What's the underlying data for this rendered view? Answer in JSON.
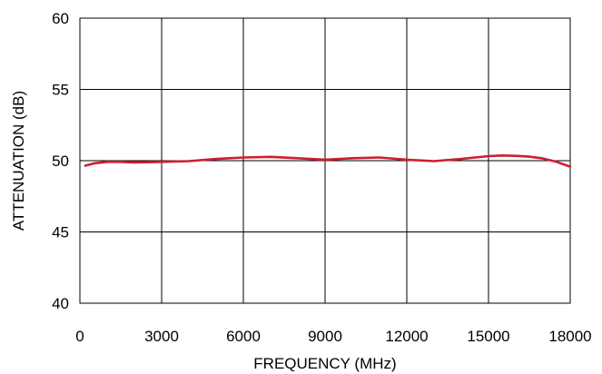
{
  "chart_data": {
    "type": "line",
    "title": "",
    "xlabel": "FREQUENCY (MHz)",
    "ylabel": "ATTENUATION (dB)",
    "xlim": [
      0,
      18000
    ],
    "ylim": [
      40,
      60
    ],
    "xticks": [
      "0",
      "3000",
      "6000",
      "9000",
      "12000",
      "15000",
      "18000"
    ],
    "yticks": [
      "40",
      "45",
      "50",
      "55",
      "60"
    ],
    "grid": true,
    "line_color": "#cc1f2f",
    "series": [
      {
        "x": [
          200,
          500,
          1000,
          1500,
          2000,
          3000,
          4000,
          5000,
          6000,
          7000,
          8000,
          9000,
          10000,
          11000,
          12000,
          13000,
          14000,
          15000,
          15500,
          16000,
          16500,
          17000,
          17500,
          18000
        ],
        "values": [
          49.65,
          49.8,
          49.92,
          49.92,
          49.88,
          49.92,
          49.97,
          50.12,
          50.22,
          50.27,
          50.17,
          50.07,
          50.17,
          50.22,
          50.07,
          49.97,
          50.12,
          50.32,
          50.36,
          50.34,
          50.28,
          50.15,
          49.92,
          49.58
        ]
      }
    ]
  }
}
